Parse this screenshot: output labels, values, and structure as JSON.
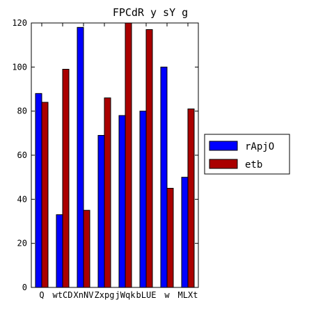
{
  "chart_data": {
    "type": "bar",
    "title": "FPCdR y sY g",
    "xlabel": "",
    "ylabel": "",
    "categories": [
      "Q",
      "wtCD",
      "XnNV",
      "Zxpg",
      "jWqk",
      "bLUE",
      "w",
      "MLXt"
    ],
    "series": [
      {
        "name": "rApjO",
        "color": "#0000ff",
        "values": [
          88,
          33,
          118,
          69,
          78,
          80,
          100,
          50
        ]
      },
      {
        "name": "etb",
        "color": "#aa0000",
        "values": [
          84,
          99,
          35,
          86,
          120,
          117,
          45,
          81
        ]
      }
    ],
    "ylim": [
      0,
      120
    ],
    "yticks": [
      0,
      20,
      40,
      60,
      80,
      100,
      120
    ],
    "grid": false,
    "legend_position": "right"
  }
}
